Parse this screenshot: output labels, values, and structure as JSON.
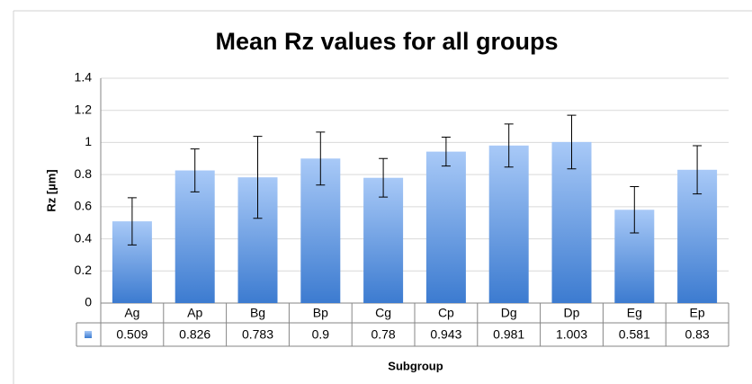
{
  "chart_data": {
    "type": "bar",
    "title": "Mean Rz values for all groups",
    "y_label": "Rz [µm]",
    "x_label": "Subgroup",
    "categories": [
      "Ag",
      "Ap",
      "Bg",
      "Bp",
      "Cg",
      "Cp",
      "Dg",
      "Dp",
      "Eg",
      "Ep"
    ],
    "values": [
      0.509,
      0.826,
      0.783,
      0.9,
      0.78,
      0.943,
      0.981,
      1.003,
      0.581,
      0.83
    ],
    "errors": [
      0.147,
      0.134,
      0.255,
      0.165,
      0.12,
      0.09,
      0.134,
      0.167,
      0.144,
      0.15
    ],
    "color": "#4f81bd",
    "ylim": [
      0,
      1.4
    ],
    "yticks": [
      0,
      0.2,
      0.4,
      0.6,
      0.8,
      1,
      1.2,
      1.4
    ],
    "grid": true,
    "data_table": true
  }
}
